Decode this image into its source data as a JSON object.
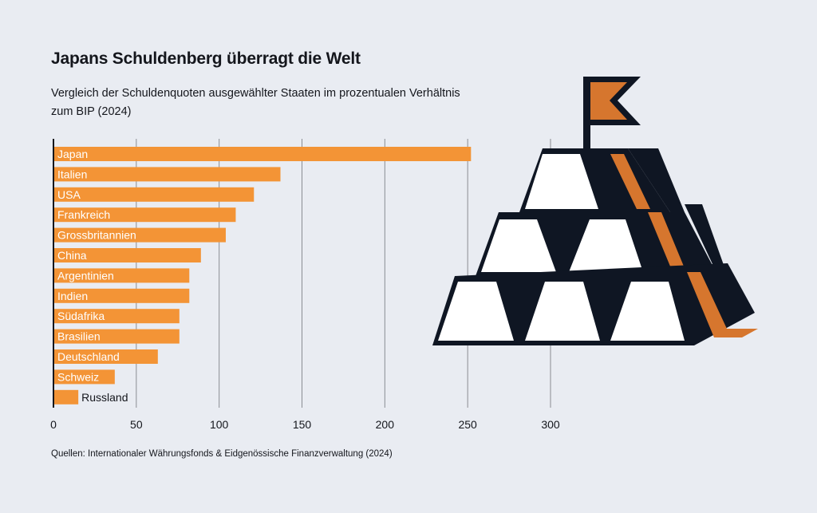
{
  "header": {
    "title": "Japans Schuldenberg überragt die Welt",
    "subtitle": "Vergleich der Schuldenquoten ausgewählter Staaten im prozentualen Verhältnis zum BIP (2024)"
  },
  "footer": {
    "source": "Quellen: Internationaler Währungsfonds & Eidgenössische Finanzverwaltung (2024)"
  },
  "colors": {
    "background": "#e9ecf2",
    "bar": "#f39436",
    "axis": "#14161c",
    "grid": "#8a8d93",
    "pyramid_dark": "#0f1623",
    "pyramid_orange": "#d6762e"
  },
  "illustration": {
    "name": "gold-bar-pyramid-with-flag"
  },
  "chart_data": {
    "type": "bar",
    "orientation": "horizontal",
    "title": "Japans Schuldenberg überragt die Welt",
    "subtitle": "Vergleich der Schuldenquoten ausgewählter Staaten im prozentualen Verhältnis zum BIP (2024)",
    "xlabel": "",
    "ylabel": "",
    "categories": [
      "Japan",
      "Italien",
      "USA",
      "Frankreich",
      "Grossbritannien",
      "China",
      "Argentinien",
      "Indien",
      "Südafrika",
      "Brasilien",
      "Deutschland",
      "Schweiz",
      "Russland"
    ],
    "values": [
      252,
      137,
      121,
      110,
      104,
      89,
      82,
      82,
      76,
      76,
      63,
      37,
      15
    ],
    "xlim": [
      0,
      300
    ],
    "xticks": [
      0,
      50,
      100,
      150,
      200,
      250,
      300
    ],
    "grid": true
  }
}
